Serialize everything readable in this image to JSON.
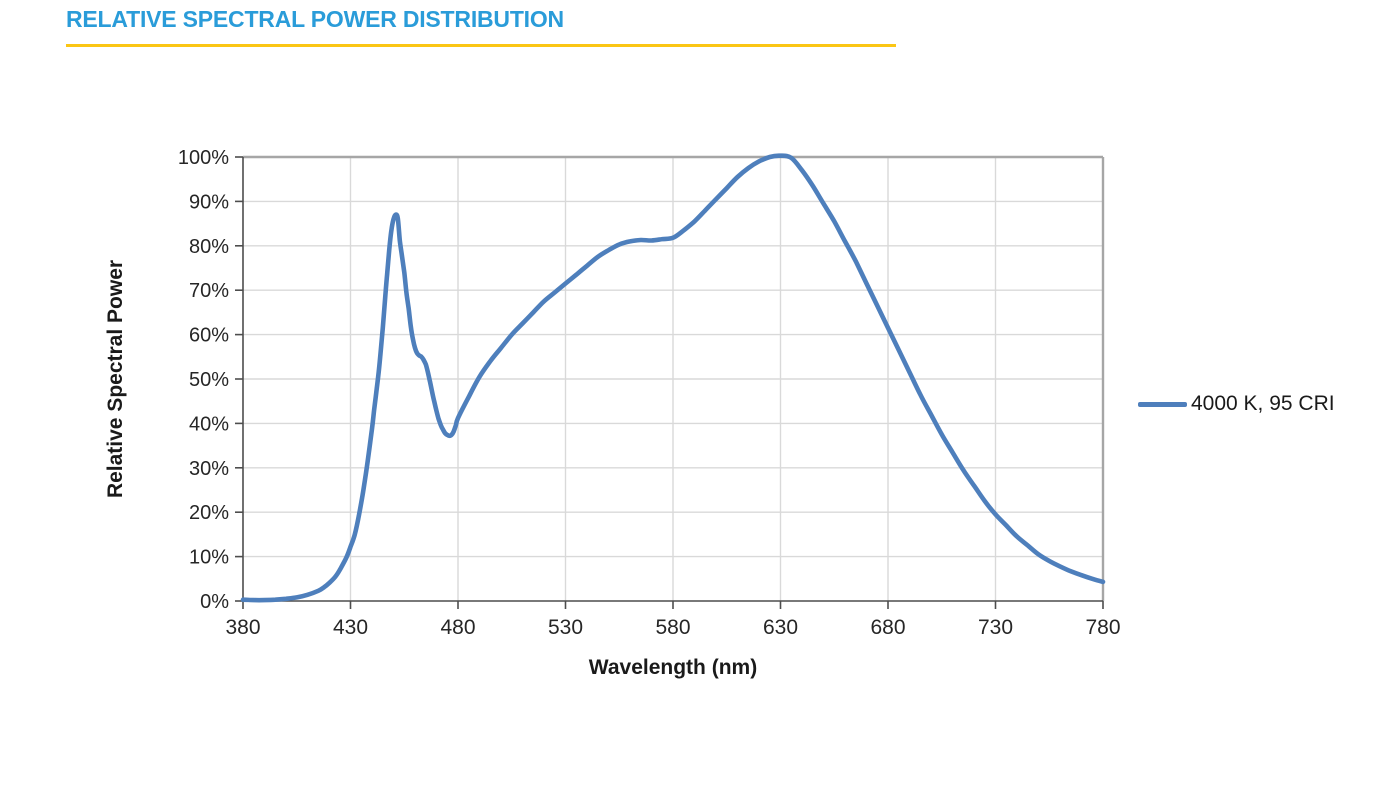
{
  "header": {
    "title": "RELATIVE SPECTRAL POWER DISTRIBUTION",
    "title_color": "#2A9CD9",
    "rule_color": "#FBC614"
  },
  "colors": {
    "axis_line": "#4d4d4d",
    "plot_border": "#A6A6A6",
    "gridline": "#D9D9D9",
    "tick_text": "#262626",
    "curve": "#4E7FBC"
  },
  "chart_data": {
    "type": "line",
    "title": "",
    "xlabel": "Wavelength (nm)",
    "ylabel": "Relative Spectral Power",
    "xlim": [
      380,
      780
    ],
    "ylim": [
      0,
      100
    ],
    "x_ticks": [
      380,
      430,
      480,
      530,
      580,
      630,
      680,
      730,
      780
    ],
    "y_ticks": [
      "0%",
      "10%",
      "20%",
      "30%",
      "40%",
      "50%",
      "60%",
      "70%",
      "80%",
      "90%",
      "100%"
    ],
    "grid": true,
    "legend_position": "right",
    "series": [
      {
        "name": "4000 K, 95 CRI",
        "color": "#4E7FBC",
        "x": [
          380,
          385,
          390,
          395,
          400,
          405,
          410,
          415,
          418,
          420,
          423,
          425,
          428,
          430,
          432,
          434,
          436,
          438,
          440,
          441,
          442,
          443,
          444,
          445,
          446,
          447,
          448,
          449,
          450,
          451,
          452,
          453,
          454,
          455,
          456,
          457,
          458,
          459,
          460,
          461,
          462,
          463,
          464,
          465,
          466,
          467,
          468,
          469,
          470,
          471,
          472,
          473,
          474,
          475,
          476,
          477,
          478,
          479,
          480,
          485,
          490,
          495,
          500,
          505,
          510,
          515,
          520,
          525,
          530,
          535,
          540,
          545,
          550,
          555,
          560,
          565,
          570,
          575,
          580,
          585,
          590,
          595,
          600,
          605,
          610,
          615,
          620,
          625,
          630,
          635,
          640,
          645,
          650,
          655,
          660,
          665,
          670,
          675,
          680,
          685,
          690,
          695,
          700,
          705,
          710,
          715,
          720,
          725,
          730,
          735,
          740,
          745,
          750,
          755,
          760,
          765,
          770,
          775,
          780
        ],
        "values": [
          0.3,
          0.2,
          0.2,
          0.3,
          0.5,
          0.8,
          1.4,
          2.3,
          3.2,
          4.0,
          5.5,
          7.0,
          9.7,
          12.2,
          15.0,
          19.5,
          25.0,
          31.5,
          38.8,
          43,
          47,
          51,
          56,
          61.5,
          67.5,
          73.5,
          79,
          83.5,
          86,
          87,
          86.2,
          81,
          77.5,
          74,
          69.5,
          66,
          62,
          59,
          57,
          55.8,
          55.3,
          55,
          54.3,
          53.3,
          51.5,
          49.3,
          47,
          44.8,
          42.8,
          41,
          39.6,
          38.6,
          37.8,
          37.4,
          37.2,
          37.4,
          38.2,
          39.6,
          41.2,
          46,
          50.5,
          54,
          57,
          60,
          62.5,
          65,
          67.5,
          69.5,
          71.5,
          73.5,
          75.5,
          77.5,
          79,
          80.3,
          81,
          81.3,
          81.2,
          81.5,
          81.8,
          83.5,
          85.5,
          88,
          90.5,
          93,
          95.5,
          97.5,
          99,
          100,
          100.3,
          99.8,
          97,
          93.5,
          89.5,
          85.5,
          81,
          76.5,
          71.5,
          66.5,
          61.5,
          56.5,
          51.5,
          46.5,
          42,
          37.5,
          33.5,
          29.5,
          26,
          22.5,
          19.5,
          17,
          14.5,
          12.5,
          10.5,
          9,
          7.8,
          6.7,
          5.8,
          5,
          4.3
        ]
      }
    ]
  }
}
